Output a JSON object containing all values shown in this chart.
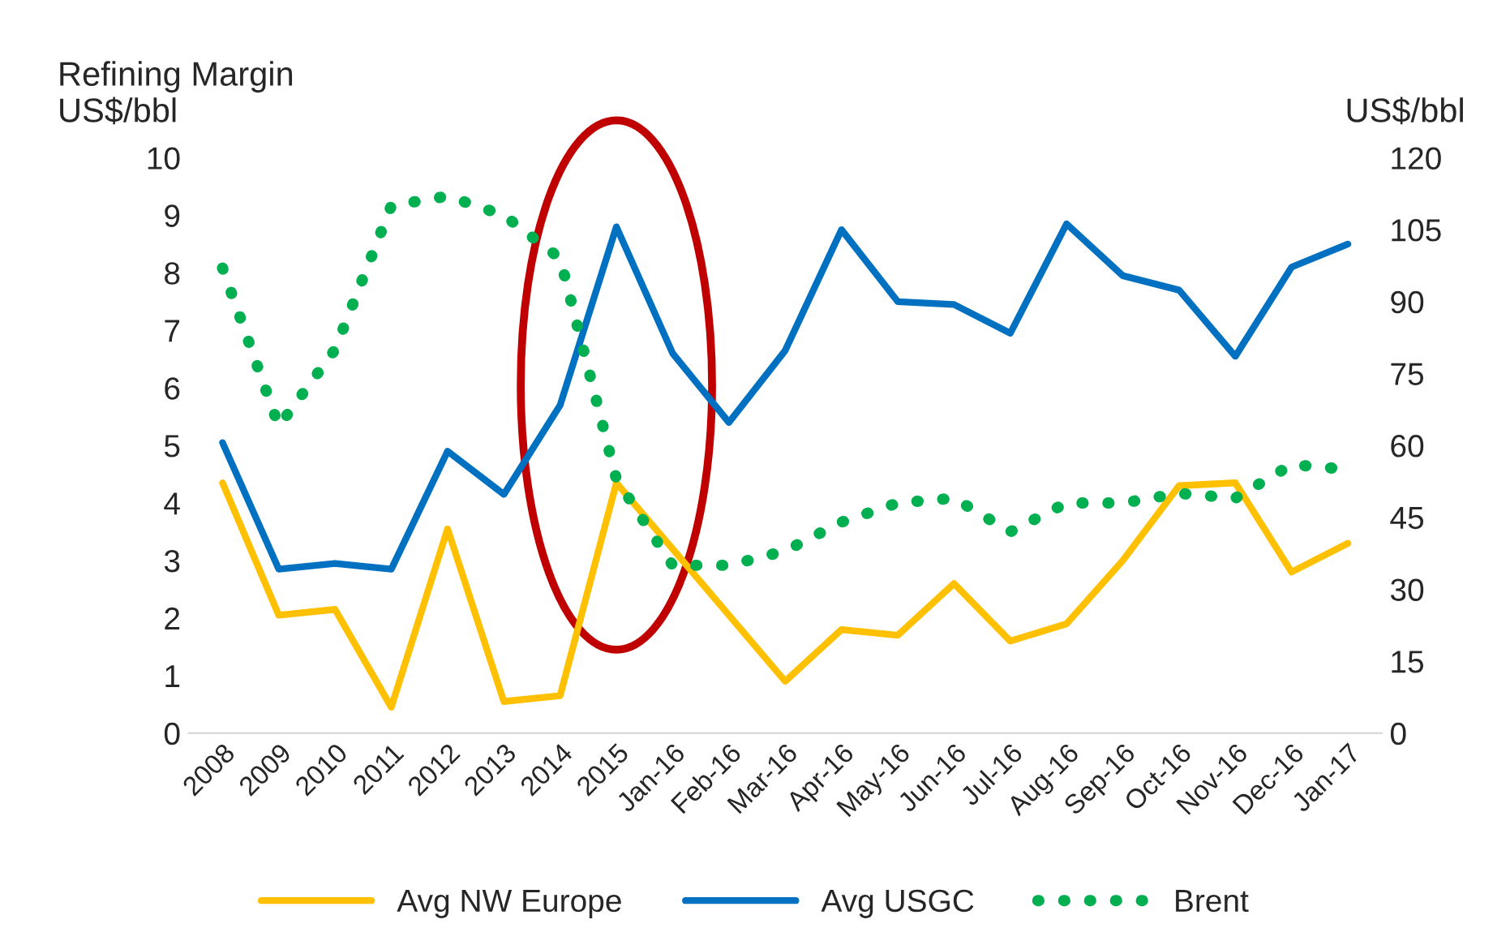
{
  "chart_data": {
    "type": "line",
    "ylabel": "Refining Margin\nUS$/bbl",
    "y2label": "US$/bbl",
    "categories": [
      "2008",
      "2009",
      "2010",
      "2011",
      "2012",
      "2013",
      "2014",
      "2015",
      "Jan-16",
      "Feb-16",
      "Mar-16",
      "Apr-16",
      "May-16",
      "Jun-16",
      "Jul-16",
      "Aug-16",
      "Sep-16",
      "Oct-16",
      "Nov-16",
      "Dec-16",
      "Jan-17"
    ],
    "series": [
      {
        "name": "Avg NW Europe",
        "color": "#ffc000",
        "line_style": "solid",
        "values": [
          4.35,
          2.05,
          2.15,
          0.45,
          3.55,
          0.55,
          0.65,
          4.35,
          3.2,
          2.05,
          0.9,
          1.8,
          1.7,
          2.6,
          1.6,
          1.9,
          3.0,
          4.3,
          4.35,
          2.8,
          3.3
        ]
      },
      {
        "name": "Avg USGC",
        "color": "#0070c0",
        "line_style": "solid",
        "values": [
          5.05,
          2.85,
          2.95,
          2.85,
          4.9,
          4.15,
          5.7,
          8.8,
          6.6,
          5.4,
          6.65,
          8.75,
          7.5,
          7.45,
          6.95,
          8.85,
          7.95,
          7.7,
          6.55,
          8.1,
          8.5
        ]
      },
      {
        "name": "Brent",
        "color": "#00b050",
        "line_style": "dotted",
        "axis": "y2",
        "values": [
          97,
          64,
          80,
          110,
          112,
          108,
          99,
          53,
          35,
          35,
          38,
          44,
          48,
          49,
          42,
          48,
          48,
          50,
          49,
          56,
          55
        ]
      }
    ],
    "ylim": [
      0,
      10
    ],
    "yticks": [
      0,
      1,
      2,
      3,
      4,
      5,
      6,
      7,
      8,
      9,
      10
    ],
    "y2lim": [
      0,
      120
    ],
    "y2ticks": [
      0,
      15,
      30,
      45,
      60,
      75,
      90,
      105,
      120
    ],
    "grid": false,
    "legend": "bottom"
  }
}
